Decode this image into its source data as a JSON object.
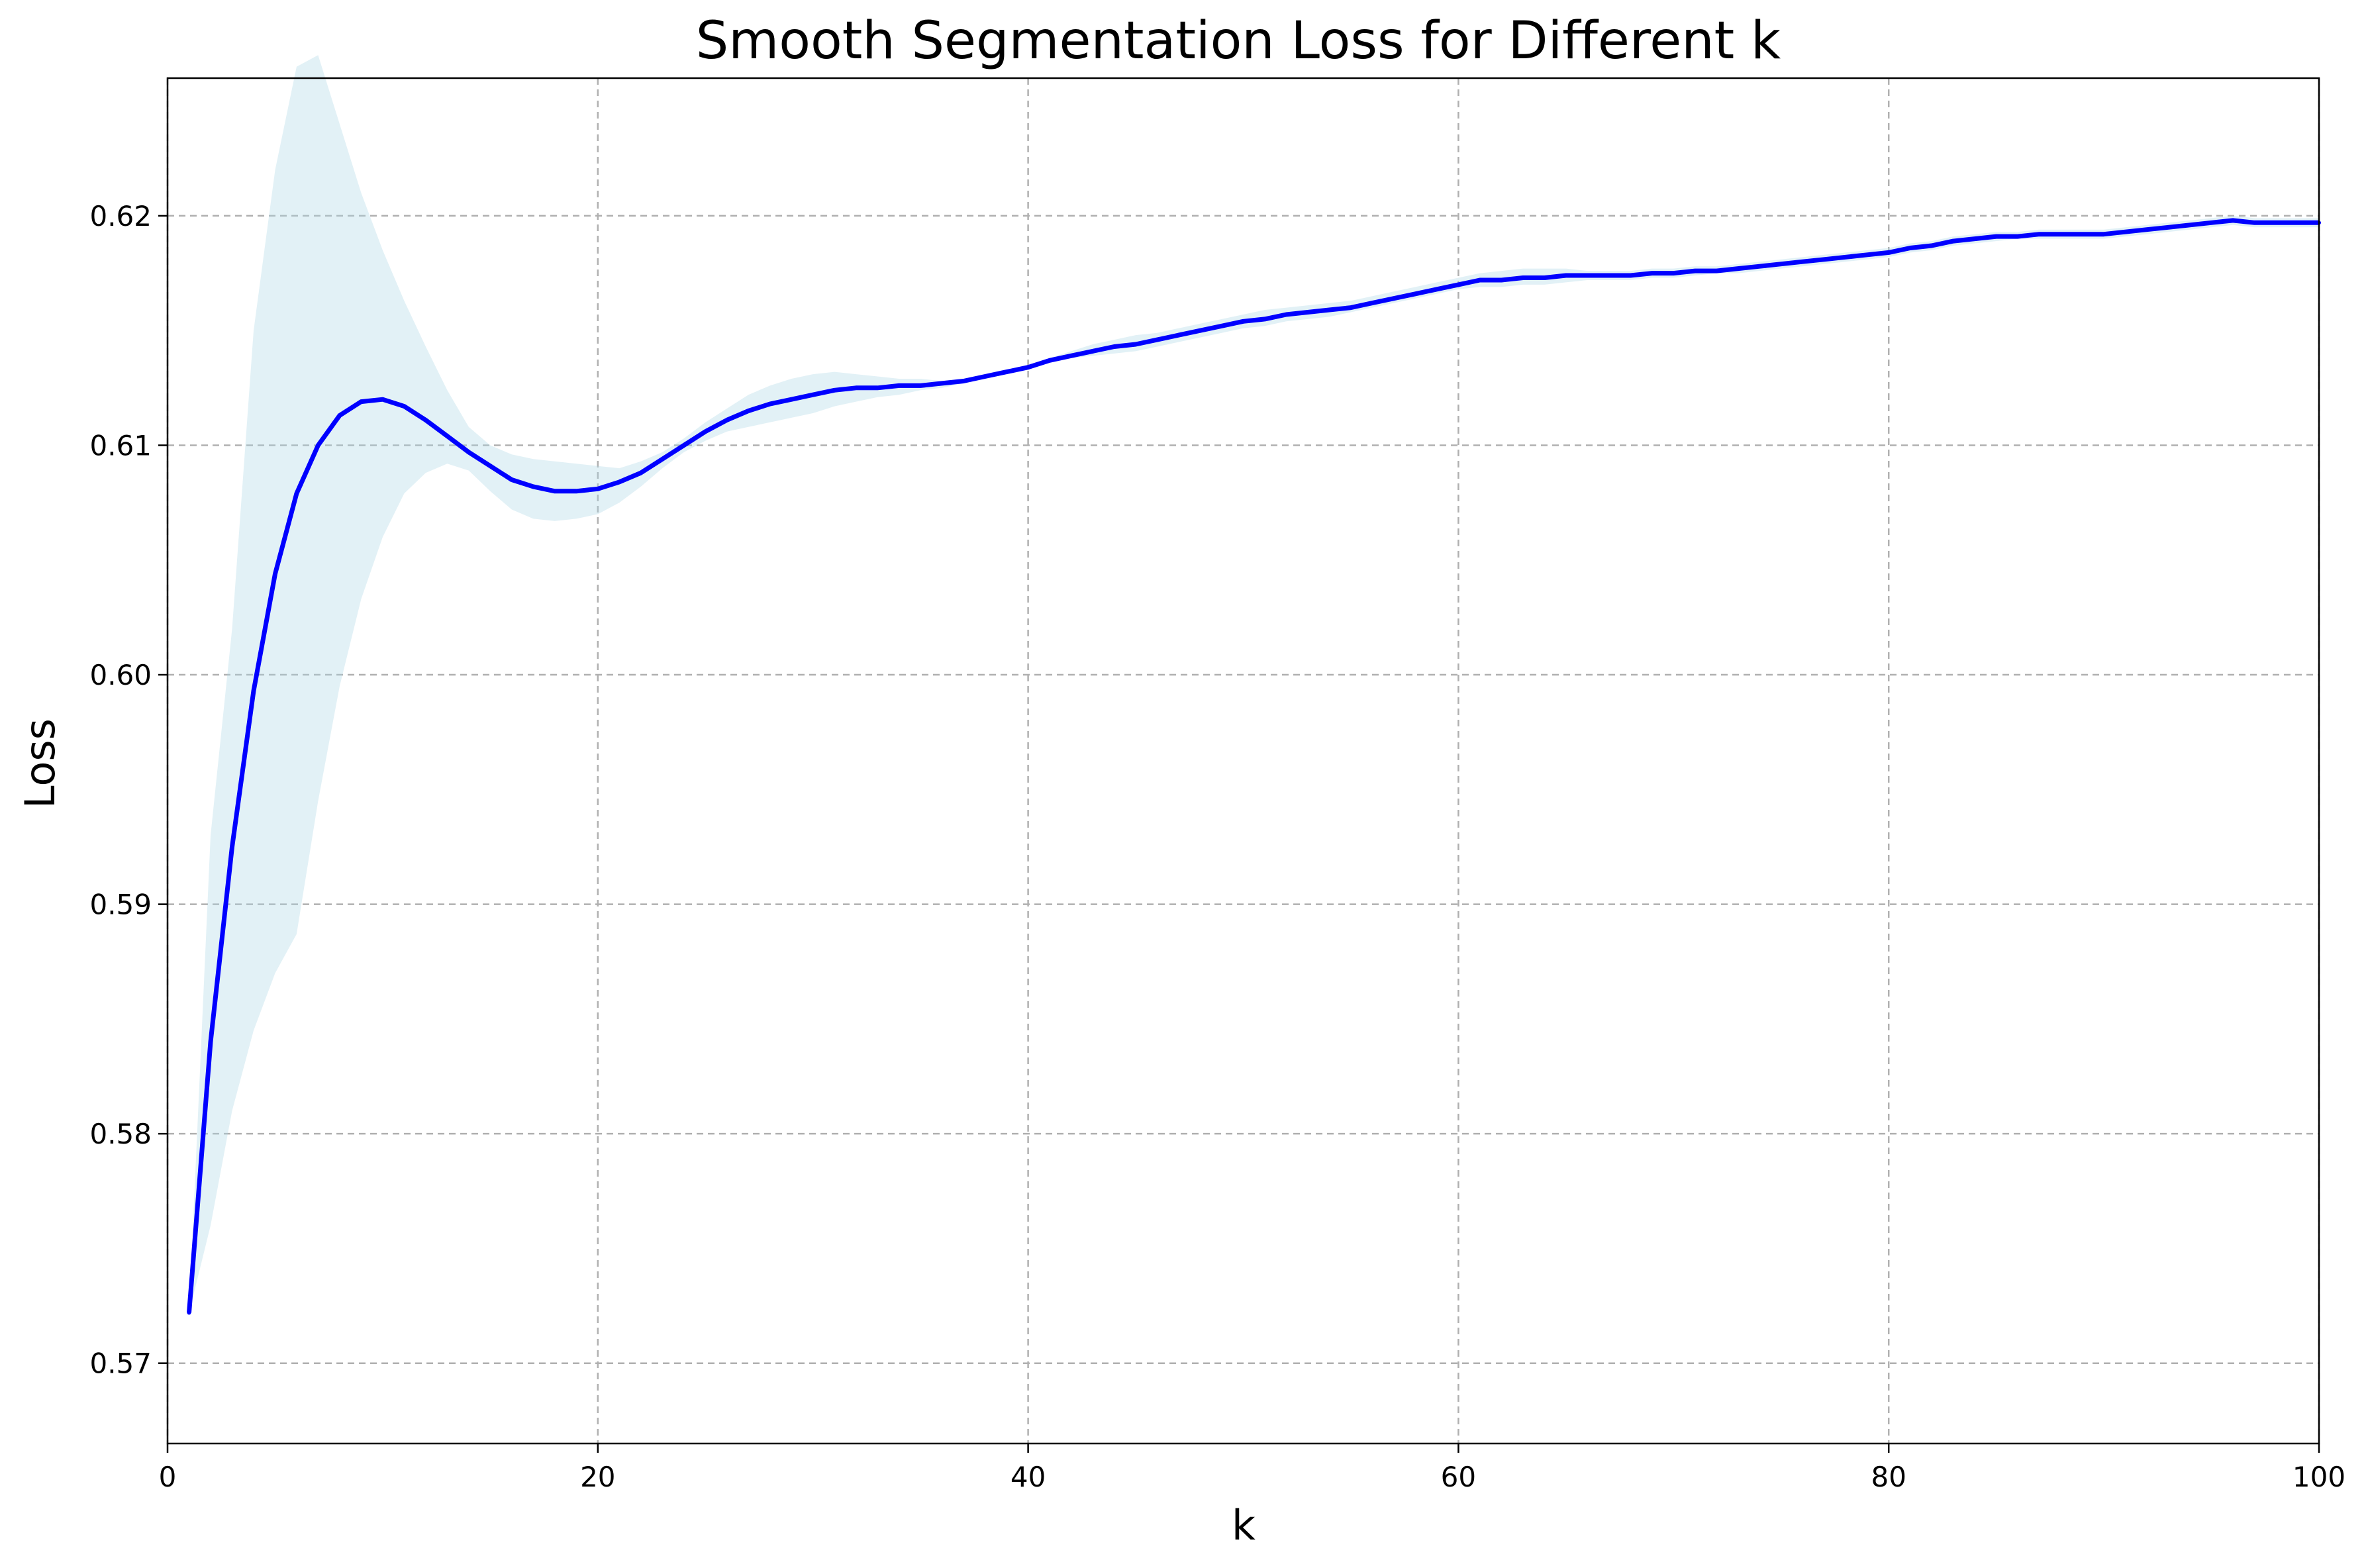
{
  "chart_data": {
    "type": "line",
    "title": "Smooth Segmentation Loss for Different k",
    "xlabel": "k",
    "ylabel": "Loss",
    "xlim": [
      0,
      100
    ],
    "ylim": [
      0.5665,
      0.626
    ],
    "xticks": [
      0,
      20,
      40,
      60,
      80,
      100
    ],
    "xtick_labels": [
      "0",
      "20",
      "40",
      "60",
      "80",
      "100"
    ],
    "yticks": [
      0.57,
      0.58,
      0.59,
      0.6,
      0.61,
      0.62
    ],
    "ytick_labels": [
      "0.57",
      "0.58",
      "0.59",
      "0.60",
      "0.61",
      "0.62"
    ],
    "grid": true,
    "colors": {
      "line": "#0000ff",
      "band": "#add8e6"
    },
    "x": [
      1,
      2,
      3,
      4,
      5,
      6,
      7,
      8,
      9,
      10,
      11,
      12,
      13,
      14,
      15,
      16,
      17,
      18,
      19,
      20,
      21,
      22,
      23,
      24,
      25,
      26,
      27,
      28,
      29,
      30,
      31,
      32,
      33,
      34,
      35,
      36,
      37,
      38,
      39,
      40,
      41,
      42,
      43,
      44,
      45,
      46,
      47,
      48,
      49,
      50,
      51,
      52,
      53,
      54,
      55,
      56,
      57,
      58,
      59,
      60,
      61,
      62,
      63,
      64,
      65,
      66,
      67,
      68,
      69,
      70,
      71,
      72,
      73,
      74,
      75,
      76,
      77,
      78,
      79,
      80,
      81,
      82,
      83,
      84,
      85,
      86,
      87,
      88,
      89,
      90,
      91,
      92,
      93,
      94,
      95,
      96,
      97,
      98,
      99,
      100
    ],
    "series": [
      {
        "values": [
          0.5722,
          0.584,
          0.5925,
          0.5993,
          0.6044,
          0.6079,
          0.61,
          0.6113,
          0.6119,
          0.612,
          0.6117,
          0.6111,
          0.6104,
          0.6097,
          0.6091,
          0.6085,
          0.6082,
          0.608,
          0.608,
          0.6081,
          0.6084,
          0.6088,
          0.6094,
          0.61,
          0.6106,
          0.6111,
          0.6115,
          0.6118,
          0.612,
          0.6122,
          0.6124,
          0.6125,
          0.6125,
          0.6126,
          0.6126,
          0.6127,
          0.6128,
          0.613,
          0.6132,
          0.6134,
          0.6137,
          0.6139,
          0.6141,
          0.6143,
          0.6144,
          0.6146,
          0.6148,
          0.615,
          0.6152,
          0.6154,
          0.6155,
          0.6157,
          0.6158,
          0.6159,
          0.616,
          0.6162,
          0.6164,
          0.6166,
          0.6168,
          0.617,
          0.6172,
          0.6172,
          0.6173,
          0.6173,
          0.6174,
          0.6174,
          0.6174,
          0.6174,
          0.6175,
          0.6175,
          0.6176,
          0.6176,
          0.6177,
          0.6178,
          0.6179,
          0.618,
          0.6181,
          0.6182,
          0.6183,
          0.6184,
          0.6186,
          0.6187,
          0.6189,
          0.619,
          0.6191,
          0.6191,
          0.6192,
          0.6192,
          0.6192,
          0.6192,
          0.6193,
          0.6194,
          0.6195,
          0.6196,
          0.6197,
          0.6198,
          0.6197,
          0.6197,
          0.6197,
          0.6197
        ],
        "band_upper": [
          0.5722,
          0.593,
          0.602,
          0.615,
          0.622,
          0.6265,
          0.627,
          0.624,
          0.621,
          0.6185,
          0.6163,
          0.6143,
          0.6124,
          0.6108,
          0.61,
          0.6096,
          0.6094,
          0.6093,
          0.6092,
          0.6091,
          0.609,
          0.6093,
          0.6097,
          0.6103,
          0.611,
          0.6116,
          0.6122,
          0.6126,
          0.6129,
          0.6131,
          0.6132,
          0.6131,
          0.613,
          0.6129,
          0.6129,
          0.6128,
          0.6129,
          0.6131,
          0.6133,
          0.6135,
          0.6138,
          0.6141,
          0.6144,
          0.6146,
          0.6148,
          0.6149,
          0.6151,
          0.6153,
          0.6155,
          0.6157,
          0.6159,
          0.616,
          0.6161,
          0.6162,
          0.6163,
          0.6165,
          0.6167,
          0.6169,
          0.6171,
          0.6173,
          0.6175,
          0.6176,
          0.6177,
          0.6177,
          0.6177,
          0.6176,
          0.6176,
          0.6176,
          0.6177,
          0.6177,
          0.6178,
          0.6178,
          0.6179,
          0.618,
          0.6181,
          0.6182,
          0.6183,
          0.6184,
          0.6185,
          0.6186,
          0.6188,
          0.6189,
          0.6191,
          0.6192,
          0.6193,
          0.6193,
          0.6194,
          0.6194,
          0.6194,
          0.6194,
          0.6195,
          0.6196,
          0.6197,
          0.6198,
          0.6199,
          0.62,
          0.6199,
          0.6199,
          0.6199,
          0.6199
        ],
        "band_lower": [
          0.5722,
          0.576,
          0.581,
          0.5845,
          0.587,
          0.5887,
          0.5945,
          0.5995,
          0.6033,
          0.606,
          0.6079,
          0.6088,
          0.6092,
          0.6089,
          0.608,
          0.6072,
          0.6068,
          0.6067,
          0.6068,
          0.607,
          0.6075,
          0.6082,
          0.609,
          0.6097,
          0.6102,
          0.6106,
          0.6108,
          0.611,
          0.6112,
          0.6114,
          0.6117,
          0.6119,
          0.6121,
          0.6122,
          0.6124,
          0.6125,
          0.6127,
          0.6129,
          0.6131,
          0.6133,
          0.6136,
          0.6138,
          0.6139,
          0.614,
          0.6141,
          0.6143,
          0.6145,
          0.6147,
          0.6149,
          0.6151,
          0.6152,
          0.6154,
          0.6155,
          0.6156,
          0.6158,
          0.616,
          0.6162,
          0.6164,
          0.6166,
          0.6168,
          0.6169,
          0.6169,
          0.617,
          0.617,
          0.6171,
          0.6172,
          0.6172,
          0.6172,
          0.6173,
          0.6173,
          0.6174,
          0.6175,
          0.6175,
          0.6176,
          0.6177,
          0.6178,
          0.6179,
          0.618,
          0.6181,
          0.6182,
          0.6184,
          0.6185,
          0.6187,
          0.6188,
          0.6189,
          0.619,
          0.619,
          0.619,
          0.619,
          0.619,
          0.6191,
          0.6192,
          0.6193,
          0.6194,
          0.6195,
          0.6196,
          0.6195,
          0.6195,
          0.6195,
          0.6195
        ]
      }
    ]
  }
}
